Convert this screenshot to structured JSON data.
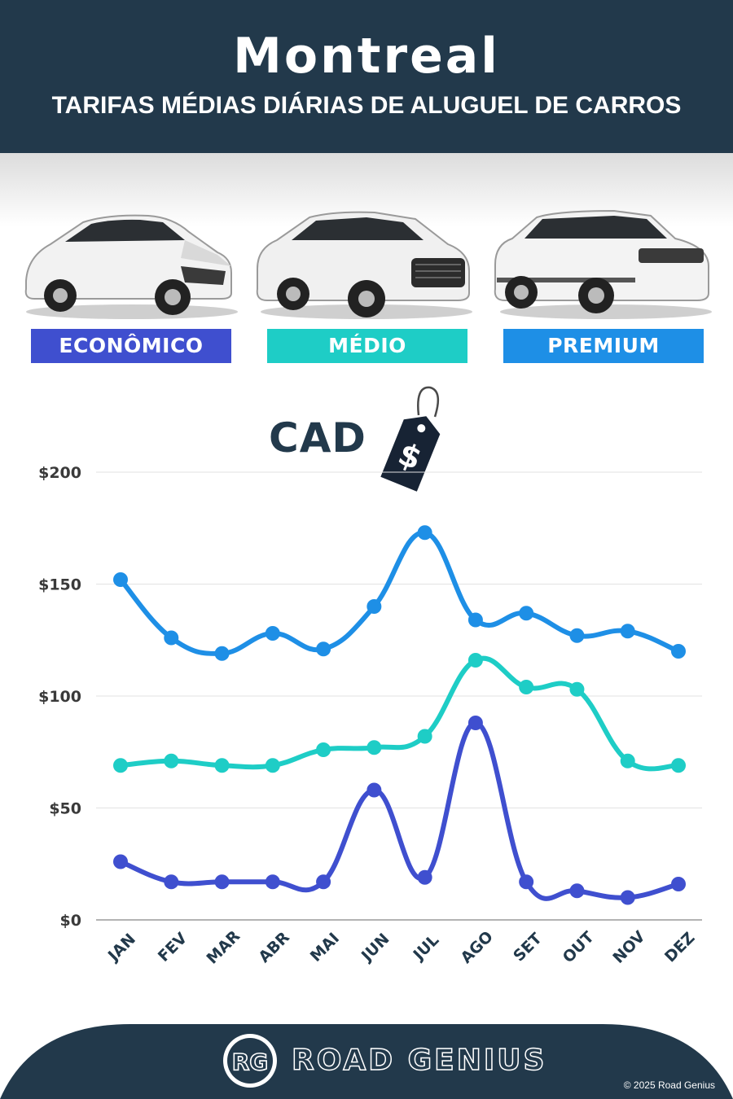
{
  "header": {
    "city": "Montreal",
    "subtitle": "TARIFAS MÉDIAS DIÁRIAS DE ALUGUEL DE CARROS"
  },
  "categories": [
    {
      "label": "ECONÔMICO",
      "color": "#3f4fcf"
    },
    {
      "label": "MÉDIO",
      "color": "#1ecdc6"
    },
    {
      "label": "PREMIUM",
      "color": "#1e8fe6"
    }
  ],
  "currency": {
    "label": "CAD",
    "tag_symbol": "$"
  },
  "chart_data": {
    "type": "line",
    "categories": [
      "JAN",
      "FEV",
      "MAR",
      "ABR",
      "MAI",
      "JUN",
      "JUL",
      "AGO",
      "SET",
      "OUT",
      "NOV",
      "DEZ"
    ],
    "series": [
      {
        "name": "PREMIUM",
        "color": "#1e8fe6",
        "values": [
          152,
          126,
          119,
          128,
          121,
          140,
          173,
          134,
          137,
          127,
          129,
          120
        ]
      },
      {
        "name": "MÉDIO",
        "color": "#1ecdc6",
        "values": [
          69,
          71,
          69,
          69,
          76,
          77,
          82,
          116,
          104,
          103,
          71,
          69
        ]
      },
      {
        "name": "ECONÔMICO",
        "color": "#3f4fcf",
        "values": [
          26,
          17,
          17,
          17,
          17,
          58,
          19,
          88,
          17,
          13,
          10,
          16
        ]
      }
    ],
    "yticks": [
      {
        "value": 0,
        "label": "$0"
      },
      {
        "value": 50,
        "label": "$50"
      },
      {
        "value": 100,
        "label": "$100"
      },
      {
        "value": 150,
        "label": "$150"
      },
      {
        "value": 200,
        "label": "$200"
      }
    ],
    "ylim": [
      0,
      200
    ],
    "grid": true
  },
  "footer": {
    "logo_letters": "RG",
    "brand": "ROAD GENIUS",
    "copyright": "© 2025 Road Genius"
  }
}
